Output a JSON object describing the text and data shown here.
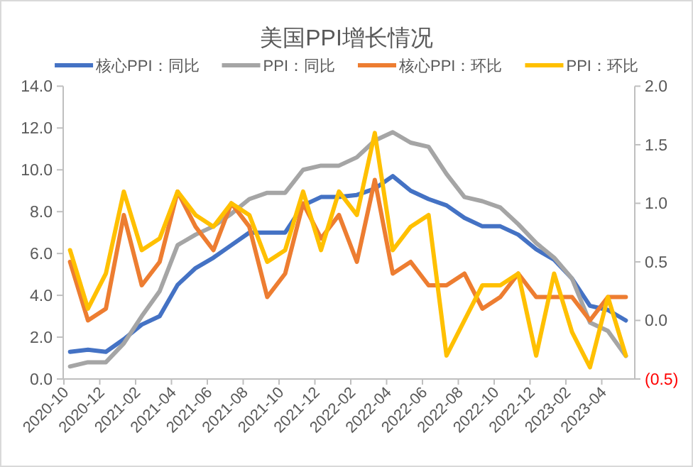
{
  "chart_data": {
    "type": "line",
    "title": "美国PPI增长情况",
    "categories": [
      "2020-10",
      null,
      "2020-12",
      null,
      "2021-02",
      null,
      "2021-04",
      null,
      "2021-06",
      null,
      "2021-08",
      null,
      "2021-10",
      null,
      "2021-12",
      null,
      "2022-02",
      null,
      "2022-04",
      null,
      "2022-06",
      null,
      "2022-08",
      null,
      "2022-10",
      null,
      "2022-12",
      null,
      "2023-02",
      null,
      "2023-04",
      null
    ],
    "series": [
      {
        "name": "核心PPI：同比",
        "color": "#4472c4",
        "values": [
          1.3,
          1.4,
          1.3,
          1.9,
          2.6,
          3.0,
          4.5,
          5.3,
          5.8,
          6.4,
          7.0,
          7.0,
          7.0,
          8.3,
          8.7,
          8.7,
          8.8,
          9.1,
          9.7,
          9.0,
          8.6,
          8.3,
          7.7,
          7.3,
          7.3,
          6.9,
          6.2,
          5.7,
          4.8,
          3.5,
          3.3,
          2.8
        ]
      },
      {
        "name": "PPI：同比",
        "color": "#a5a5a5",
        "values": [
          0.6,
          0.8,
          0.8,
          1.7,
          3.0,
          4.2,
          6.4,
          6.9,
          7.3,
          7.9,
          8.6,
          8.9,
          8.9,
          10.0,
          10.2,
          10.2,
          10.6,
          11.4,
          11.8,
          11.3,
          11.1,
          9.8,
          8.7,
          8.5,
          8.2,
          7.4,
          6.5,
          5.8,
          4.8,
          2.7,
          2.3,
          1.1
        ]
      },
      {
        "name": "核心PPI：环比",
        "color": "#ed7d31",
        "axis": "y2",
        "values": [
          0.5,
          0.0,
          0.1,
          0.9,
          0.3,
          0.5,
          1.1,
          0.8,
          0.6,
          1.0,
          0.8,
          0.2,
          0.4,
          1.0,
          0.7,
          0.9,
          0.5,
          1.2,
          0.4,
          0.5,
          0.3,
          0.3,
          0.4,
          0.1,
          0.2,
          0.4,
          0.2,
          0.2,
          0.2,
          0.0,
          0.2,
          0.2
        ]
      },
      {
        "name": "PPI：环比",
        "color": "#ffc000",
        "axis": "y2",
        "values": [
          0.6,
          0.1,
          0.4,
          1.1,
          0.6,
          0.7,
          1.1,
          0.9,
          0.8,
          1.0,
          0.9,
          0.5,
          0.6,
          1.1,
          0.6,
          1.1,
          0.9,
          1.6,
          0.6,
          0.8,
          0.9,
          -0.3,
          0.0,
          0.3,
          0.3,
          0.4,
          -0.3,
          0.4,
          -0.1,
          -0.4,
          0.2,
          -0.3
        ]
      }
    ],
    "ylim": [
      0,
      14
    ],
    "yticks": [
      {
        "value": 0,
        "label": "0.0"
      },
      {
        "value": 2,
        "label": "2.0"
      },
      {
        "value": 4,
        "label": "4.0"
      },
      {
        "value": 6,
        "label": "6.0"
      },
      {
        "value": 8,
        "label": "8.0"
      },
      {
        "value": 10,
        "label": "10.0"
      },
      {
        "value": 12,
        "label": "12.0"
      },
      {
        "value": 14,
        "label": "14.0"
      }
    ],
    "y2lim": [
      -0.5,
      2
    ],
    "y2ticks": [
      {
        "value": -0.5,
        "label": "(0.5)"
      },
      {
        "value": 0,
        "label": "0.0"
      },
      {
        "value": 0.5,
        "label": "0.5"
      },
      {
        "value": 1,
        "label": "1.0"
      },
      {
        "value": 1.5,
        "label": "1.5"
      },
      {
        "value": 2,
        "label": "2.0"
      }
    ],
    "grid": false,
    "legend": "top",
    "marker": "none",
    "line_style": "solid"
  }
}
